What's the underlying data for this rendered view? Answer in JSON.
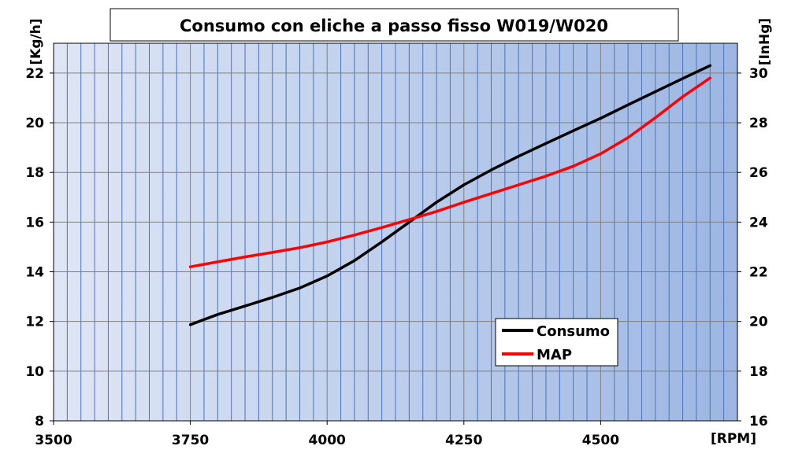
{
  "chart_data": {
    "type": "line",
    "title": "Consumo con eliche a passo fisso W019/W020",
    "xlabel": "[RPM]",
    "ylabel_left": "[Kg/h]",
    "ylabel_right": "[InHg]",
    "xlim": [
      3500,
      4750
    ],
    "ylim_left": [
      8,
      23.2
    ],
    "ylim_right": [
      16,
      31.2
    ],
    "x_ticks": [
      3500,
      3750,
      4000,
      4250,
      4500
    ],
    "y_ticks_left": [
      8,
      10,
      12,
      14,
      16,
      18,
      20,
      22
    ],
    "y_ticks_right": [
      16,
      18,
      20,
      22,
      24,
      26,
      28,
      30
    ],
    "x_minor_step": 25,
    "y_grid_step": 2,
    "grid": true,
    "legend_position": "bottom-right",
    "colors": {
      "plot_bg_start": "#dfe6f5",
      "plot_bg_end": "#9cb6e2",
      "grid_vertical": "#4a72c0",
      "grid_horizontal": "#7f7f7f"
    },
    "series": [
      {
        "name": "Consumo",
        "axis": "left",
        "color": "#000000",
        "x": [
          3750,
          3800,
          3850,
          3900,
          3950,
          4000,
          4050,
          4100,
          4150,
          4200,
          4250,
          4300,
          4350,
          4400,
          4450,
          4500,
          4550,
          4600,
          4650,
          4700
        ],
        "y": [
          11.87,
          12.28,
          12.62,
          12.97,
          13.35,
          13.83,
          14.45,
          15.2,
          16.0,
          16.8,
          17.5,
          18.1,
          18.65,
          19.17,
          19.68,
          20.18,
          20.72,
          21.25,
          21.78,
          22.3
        ]
      },
      {
        "name": "MAP",
        "axis": "right",
        "color": "#ff0000",
        "x": [
          3750,
          3800,
          3850,
          3900,
          3950,
          4000,
          4050,
          4100,
          4150,
          4200,
          4250,
          4300,
          4350,
          4400,
          4450,
          4500,
          4550,
          4600,
          4650,
          4700
        ],
        "y": [
          22.2,
          22.4,
          22.6,
          22.78,
          22.97,
          23.2,
          23.48,
          23.78,
          24.1,
          24.43,
          24.8,
          25.15,
          25.5,
          25.85,
          26.25,
          26.75,
          27.4,
          28.2,
          29.05,
          29.8
        ]
      }
    ]
  }
}
